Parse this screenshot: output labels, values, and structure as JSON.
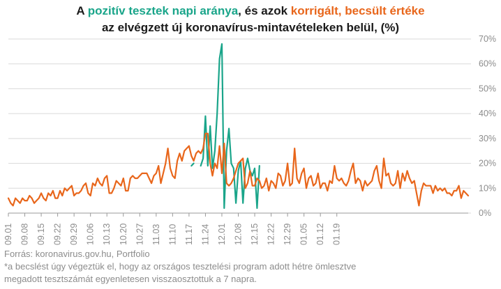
{
  "title": {
    "part1": "A ",
    "positive_label": "pozitív tesztek napi aránya",
    "part2": ", és azok ",
    "corrected_label": "korrigált, becsült értéke",
    "line2": "az elvégzett új koronavírus-mintavételeken belül,  (%)"
  },
  "source": "Forrás: koronavirus.gov.hu, Portfolio",
  "footnote": "*a becslést úgy végeztük el, hogy az országos tesztelési program adott hétre ömlesztve megadott tesztszámát egyenletesen visszaosztottuk a 7 napra.",
  "colors": {
    "positive": "#1aa58a",
    "corrected": "#e8661b",
    "grid": "#d9d9d9",
    "axis": "#999999"
  },
  "chart_data": {
    "type": "line",
    "y_ticks": [
      "0%",
      "10%",
      "20%",
      "30%",
      "40%",
      "50%",
      "60%",
      "70%"
    ],
    "ylim": [
      0,
      70
    ],
    "x_ticks": [
      "09.01",
      "09.08",
      "09.15",
      "09.22",
      "09.29",
      "10.06",
      "10.13",
      "10.20",
      "10.27",
      "11.03",
      "11.10",
      "11.17",
      "11.24",
      "12.01",
      "12.08",
      "12.15",
      "12.22",
      "12.29",
      "01.05",
      "01.12",
      "01.19"
    ],
    "x_start": "2020-09-01",
    "series": [
      {
        "name": "pozitív tesztek napi aránya",
        "segments": [
          {
            "start": "2020-11-18",
            "values": [
              19,
              20
            ]
          },
          {
            "start": "2020-11-22",
            "values": [
              19,
              22,
              39,
              19,
              35,
              18,
              25,
              40,
              62,
              68,
              2,
              25,
              34,
              20,
              18,
              4,
              17,
              21,
              4,
              18,
              22,
              17,
              15,
              18,
              2,
              19
            ]
          }
        ]
      },
      {
        "name": "korrigált, becsült értéke",
        "values": [
          6,
          4,
          3,
          6,
          5,
          4,
          6,
          5,
          5,
          7,
          6,
          4,
          5,
          6,
          8,
          6,
          5,
          8,
          7,
          9,
          6,
          6,
          9,
          7,
          10,
          9,
          10,
          11,
          7,
          8,
          8,
          9,
          11,
          12,
          8,
          7,
          12,
          11,
          14,
          12,
          11,
          14,
          15,
          8,
          8,
          10,
          13,
          12,
          11,
          14,
          9,
          9,
          14,
          15,
          14,
          14,
          15,
          16,
          16,
          16,
          14,
          12,
          15,
          16,
          19,
          12,
          16,
          20,
          26,
          18,
          15,
          14,
          21,
          24,
          21,
          25,
          26,
          27,
          23,
          21,
          24,
          25,
          24,
          26,
          32,
          32,
          20,
          15,
          20,
          18,
          27,
          16,
          28,
          12,
          11,
          12,
          14,
          17,
          20,
          21,
          22,
          10,
          12,
          17,
          11,
          11,
          14,
          13,
          10,
          11,
          14,
          9,
          13,
          12,
          10,
          16,
          15,
          11,
          13,
          20,
          11,
          12,
          26,
          14,
          12,
          16,
          18,
          10,
          14,
          15,
          11,
          12,
          16,
          10,
          12,
          12,
          9,
          13,
          12,
          19,
          14,
          13,
          14,
          12,
          11,
          13,
          17,
          20,
          12,
          14,
          13,
          9,
          13,
          11,
          12,
          13,
          17,
          19,
          13,
          10,
          22,
          15,
          16,
          12,
          11,
          12,
          17,
          10,
          16,
          13,
          17,
          14,
          12,
          13,
          8,
          3,
          9,
          12,
          11,
          11,
          11,
          8,
          11,
          9,
          10,
          9,
          10,
          8,
          8,
          7,
          9,
          9,
          11,
          6,
          9,
          8,
          7
        ]
      }
    ]
  }
}
